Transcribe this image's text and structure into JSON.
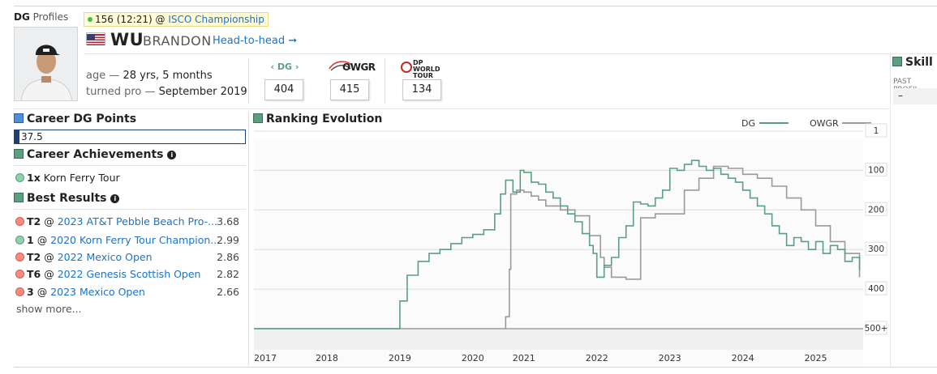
{
  "brand": {
    "name": "DG",
    "suffix": "Profiles"
  },
  "live": {
    "position": "156",
    "thru": "(12:21)",
    "at": "@",
    "event": "ISCO Championship"
  },
  "player": {
    "last_name": "WU",
    "first_name": "BRANDON",
    "country": "USA",
    "h2h_label": "Head-to-head",
    "h2h_arrow": "➞"
  },
  "info": {
    "age_label": "age —",
    "age_value": "28 yrs, 5 months",
    "pro_label": "turned pro —",
    "pro_value": "September 2019"
  },
  "rankings": [
    {
      "logo": "‹ DG ›",
      "value": "404"
    },
    {
      "logo": "OWGR",
      "value": "415"
    },
    {
      "logo": "DP WORLD TOUR",
      "value": "134"
    }
  ],
  "career_points": {
    "title": "Career DG Points",
    "value": "37.5",
    "fill_fraction": 0.02
  },
  "achievements": {
    "title": "Career Achievements",
    "items": [
      {
        "count": "1x",
        "label": "Korn Ferry Tour"
      }
    ]
  },
  "best_results": {
    "title": "Best Results",
    "items": [
      {
        "finish": "T2",
        "at": "@",
        "event": "2023 AT&T Pebble Beach Pro-...",
        "score": "3.68",
        "status": "red"
      },
      {
        "finish": "1",
        "at": "@",
        "event": "2020 Korn Ferry Tour Champion...",
        "score": "2.99",
        "status": "green"
      },
      {
        "finish": "T2",
        "at": "@",
        "event": "2022 Mexico Open",
        "score": "2.86",
        "status": "red"
      },
      {
        "finish": "T6",
        "at": "@",
        "event": "2022 Genesis Scottish Open",
        "score": "2.82",
        "status": "red"
      },
      {
        "finish": "3",
        "at": "@",
        "event": "2023 Mexico Open",
        "score": "2.66",
        "status": "red"
      }
    ],
    "show_more": "show more..."
  },
  "skill": {
    "title": "Skill P",
    "sub": "PAST PROFIL",
    "value": "–"
  },
  "colors": {
    "dg": "#5aa080",
    "owgr": "#9a9a9a",
    "link": "#1a73c8",
    "navy": "#1f3f77"
  },
  "chart_data": {
    "type": "line",
    "title": "Ranking Evolution",
    "legend": [
      "DG",
      "OWGR"
    ],
    "y_ticks": [
      "1",
      "100",
      "200",
      "300",
      "400",
      "500+"
    ],
    "y_tick_values": [
      1,
      100,
      200,
      300,
      400,
      500
    ],
    "ylim": [
      500,
      1
    ],
    "y_inverted": true,
    "xlim": [
      2017.0,
      2025.35
    ],
    "x_ticks": [
      "2017",
      "2018",
      "2019",
      "2020",
      "2021",
      "2022",
      "2023",
      "2024",
      "2025"
    ],
    "x_tick_values": [
      2017,
      2018,
      2019,
      2020,
      2020.7,
      2021.7,
      2022.7,
      2023.7,
      2024.7
    ],
    "series": [
      {
        "name": "DG",
        "x": [
          2017.0,
          2019.0,
          2019.0,
          2019.1,
          2019.25,
          2019.4,
          2019.55,
          2019.7,
          2019.85,
          2020.0,
          2020.15,
          2020.3,
          2020.38,
          2020.45,
          2020.55,
          2020.65,
          2020.7,
          2020.8,
          2020.9,
          2021.0,
          2021.1,
          2021.2,
          2021.3,
          2021.4,
          2021.5,
          2021.6,
          2021.65,
          2021.7,
          2021.8,
          2021.9,
          2022.0,
          2022.1,
          2022.2,
          2022.3,
          2022.4,
          2022.5,
          2022.6,
          2022.7,
          2022.8,
          2022.9,
          2023.0,
          2023.1,
          2023.2,
          2023.3,
          2023.4,
          2023.5,
          2023.6,
          2023.7,
          2023.8,
          2023.9,
          2024.0,
          2024.1,
          2024.2,
          2024.3,
          2024.4,
          2024.5,
          2024.6,
          2024.7,
          2024.8,
          2024.9,
          2025.0,
          2025.1,
          2025.2,
          2025.3
        ],
        "y": [
          500,
          500,
          430,
          365,
          330,
          310,
          300,
          285,
          270,
          262,
          250,
          210,
          160,
          125,
          155,
          100,
          105,
          130,
          135,
          155,
          170,
          190,
          210,
          230,
          260,
          290,
          310,
          370,
          340,
          320,
          270,
          240,
          180,
          185,
          190,
          170,
          150,
          95,
          100,
          85,
          75,
          90,
          100,
          95,
          110,
          120,
          130,
          150,
          170,
          190,
          210,
          240,
          260,
          290,
          270,
          280,
          300,
          280,
          310,
          290,
          300,
          330,
          320,
          350
        ]
      },
      {
        "name": "OWGR",
        "x": [
          2017.0,
          2020.45,
          2020.45,
          2020.5,
          2020.52,
          2020.6,
          2020.7,
          2020.8,
          2020.9,
          2021.0,
          2021.2,
          2021.4,
          2021.6,
          2021.75,
          2021.8,
          2021.9,
          2022.1,
          2022.3,
          2022.5,
          2022.7,
          2022.9,
          2023.1,
          2023.3,
          2023.5,
          2023.7,
          2023.9,
          2024.1,
          2024.3,
          2024.5,
          2024.7,
          2024.9,
          2025.1,
          2025.3
        ],
        "y": [
          500,
          500,
          470,
          350,
          160,
          150,
          155,
          165,
          175,
          190,
          200,
          215,
          265,
          320,
          345,
          370,
          375,
          220,
          210,
          210,
          150,
          120,
          90,
          95,
          110,
          120,
          140,
          170,
          200,
          240,
          280,
          310,
          370
        ]
      }
    ]
  }
}
